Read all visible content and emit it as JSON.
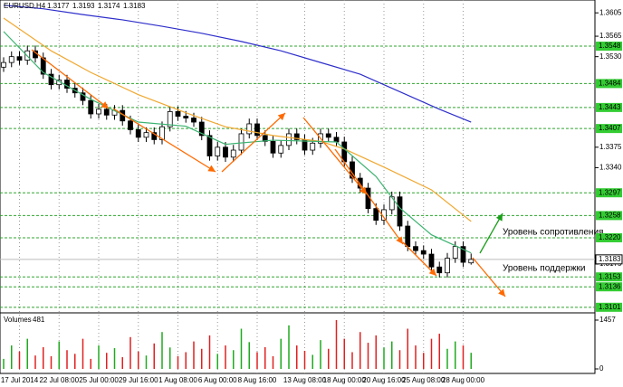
{
  "chart_data": {
    "type": "candlestick",
    "title": "EURUSD,H4",
    "open": [
      1.3512,
      1.352,
      1.353,
      1.3524,
      1.354,
      1.3528,
      1.35,
      1.3482,
      1.349,
      1.3476,
      1.3468,
      1.3455,
      1.3432,
      1.344,
      1.343,
      1.3438,
      1.342,
      1.3405,
      1.3392,
      1.34,
      1.3388,
      1.341,
      1.3436,
      1.3428,
      1.3425,
      1.3418,
      1.3395,
      1.336,
      1.3375,
      1.3358,
      1.337,
      1.3398,
      1.3415,
      1.3395,
      1.3385,
      1.3365,
      1.3378,
      1.3398,
      1.3388,
      1.337,
      1.3382,
      1.3398,
      1.3392,
      1.3384,
      1.335,
      1.3322,
      1.3305,
      1.327,
      1.325,
      1.3268,
      1.329,
      1.324,
      1.3205,
      1.3198,
      1.3192,
      1.317,
      1.316,
      1.3185,
      1.3205,
      1.3177
    ],
    "high": [
      1.3529,
      1.3539,
      1.3539,
      1.3549,
      1.3549,
      1.3537,
      1.3509,
      1.3499,
      1.3499,
      1.3485,
      1.3477,
      1.3464,
      1.3449,
      1.3449,
      1.3447,
      1.3447,
      1.3429,
      1.3414,
      1.3409,
      1.3409,
      1.3419,
      1.3445,
      1.3445,
      1.3437,
      1.3434,
      1.3427,
      1.3404,
      1.3384,
      1.3384,
      1.3379,
      1.3407,
      1.3424,
      1.3424,
      1.3404,
      1.3394,
      1.3387,
      1.3407,
      1.3407,
      1.3397,
      1.3391,
      1.3407,
      1.3407,
      1.3401,
      1.3393,
      1.3359,
      1.3331,
      1.3314,
      1.3279,
      1.3277,
      1.3299,
      1.3299,
      1.3249,
      1.3214,
      1.3207,
      1.3201,
      1.3179,
      1.3194,
      1.3214,
      1.3214,
      1.3193
    ],
    "low": [
      1.3504,
      1.3512,
      1.3516,
      1.3516,
      1.352,
      1.3492,
      1.3474,
      1.3474,
      1.3468,
      1.346,
      1.3447,
      1.3424,
      1.3424,
      1.3422,
      1.3422,
      1.3412,
      1.3397,
      1.3384,
      1.3384,
      1.338,
      1.338,
      1.3402,
      1.342,
      1.3417,
      1.341,
      1.3387,
      1.3352,
      1.3352,
      1.335,
      1.335,
      1.3362,
      1.339,
      1.3387,
      1.3377,
      1.3357,
      1.3357,
      1.337,
      1.338,
      1.3362,
      1.3362,
      1.3374,
      1.3384,
      1.3376,
      1.3342,
      1.3314,
      1.3297,
      1.3262,
      1.3242,
      1.3242,
      1.326,
      1.3232,
      1.3197,
      1.319,
      1.3184,
      1.3162,
      1.3152,
      1.3152,
      1.3177,
      1.317,
      1.3174
    ],
    "close": [
      1.352,
      1.353,
      1.3524,
      1.354,
      1.3528,
      1.35,
      1.3482,
      1.349,
      1.3476,
      1.3468,
      1.3455,
      1.3432,
      1.344,
      1.343,
      1.3438,
      1.342,
      1.3405,
      1.3392,
      1.34,
      1.3388,
      1.341,
      1.3436,
      1.3428,
      1.3425,
      1.3418,
      1.3395,
      1.336,
      1.3375,
      1.3358,
      1.337,
      1.3398,
      1.3415,
      1.3395,
      1.3385,
      1.3365,
      1.3378,
      1.3398,
      1.3388,
      1.337,
      1.3382,
      1.3398,
      1.3392,
      1.3384,
      1.335,
      1.3322,
      1.3305,
      1.327,
      1.325,
      1.3268,
      1.329,
      1.324,
      1.3205,
      1.3198,
      1.3192,
      1.317,
      1.316,
      1.3185,
      1.3205,
      1.3178,
      1.3183
    ],
    "volume_title": "Volumes",
    "volume": [
      300,
      700,
      520,
      900,
      400,
      650,
      380,
      820,
      560,
      450,
      900,
      300,
      700,
      480,
      620,
      350,
      950,
      520,
      400,
      760,
      1100,
      640,
      380,
      500,
      820,
      600,
      1000,
      450,
      700,
      560,
      1200,
      800,
      500,
      650,
      380,
      900,
      1300,
      700,
      540,
      420,
      860,
      600,
      1457,
      900,
      500,
      1100,
      780,
      1000,
      640,
      820,
      560,
      1200,
      700,
      480,
      900,
      1050,
      600,
      820,
      700,
      481
    ],
    "volume_ylim": [
      0,
      1457
    ],
    "volume_yticks": [
      0,
      1457
    ],
    "moving_averages": [
      {
        "color": "#2e2ecc",
        "x": [
          0,
          5,
          10,
          15,
          20,
          25,
          30,
          35,
          40,
          45,
          50,
          55,
          59
        ],
        "values": [
          1.3618,
          1.3612,
          1.3602,
          1.3593,
          1.3582,
          1.357,
          1.3556,
          1.354,
          1.352,
          1.35,
          1.347,
          1.344,
          1.3418
        ]
      },
      {
        "color": "#f0a830",
        "x": [
          0,
          6,
          11,
          17,
          23,
          28,
          34,
          40,
          43,
          48,
          54,
          59
        ],
        "values": [
          1.3596,
          1.354,
          1.3503,
          1.3465,
          1.3434,
          1.341,
          1.3395,
          1.3385,
          1.3372,
          1.3341,
          1.3302,
          1.3248
        ]
      },
      {
        "color": "#3cb371",
        "x": [
          0,
          5,
          11,
          17,
          23,
          28,
          34,
          42,
          47,
          50,
          54,
          59
        ],
        "values": [
          1.3573,
          1.3503,
          1.3457,
          1.3418,
          1.3411,
          1.338,
          1.3387,
          1.3384,
          1.3325,
          1.3271,
          1.3225,
          1.3194
        ]
      }
    ],
    "ylim": [
      1.3093,
      1.3627
    ],
    "yticks": [
      1.3605,
      1.3565,
      {
        "value": 1.353,
        "label": "1.3530"
      },
      1.3375,
      {
        "value": 1.334,
        "label": "1.3340"
      },
      1.3175
    ],
    "levels": [
      1.3548,
      1.3484,
      1.3443,
      1.3407,
      1.3297,
      1.3258,
      {
        "value": 1.322,
        "label": "1.3220"
      },
      1.3153,
      1.3136,
      1.3101
    ],
    "xticks": [
      {
        "value": 2,
        "label": "17 Jul 2014"
      },
      {
        "value": 7,
        "label": "22 Jul 08:00"
      },
      {
        "value": 12,
        "label": "25 Jul 00:00"
      },
      {
        "value": 17,
        "label": "29 Jul 16:00"
      },
      {
        "value": 22,
        "label": "1 Aug 08:00"
      },
      {
        "value": 27,
        "label": "6 Aug 00:00"
      },
      {
        "value": 32,
        "label": "8 Aug 16:00"
      },
      {
        "value": 38,
        "label": "13 Aug 08:00"
      },
      {
        "value": 43,
        "label": "18 Aug 00:00"
      },
      {
        "value": 48,
        "label": "20 Aug 16:00"
      },
      {
        "value": 53,
        "label": "25 Aug 08:00"
      },
      {
        "value": 58,
        "label": "28 Aug 00:00"
      }
    ],
    "annotations": [
      "Уровень сопротивления",
      "Уровень поддержки"
    ]
  }
}
